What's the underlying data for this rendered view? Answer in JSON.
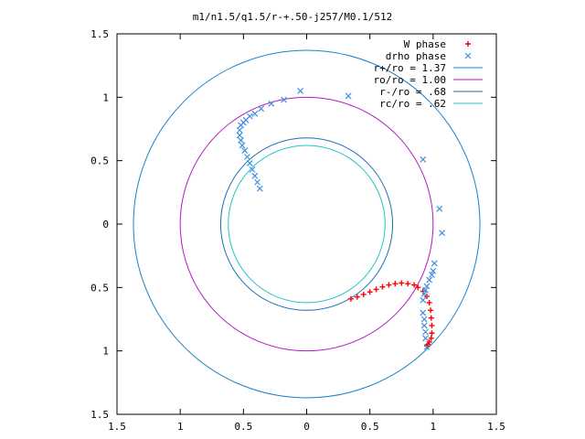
{
  "chart_data": {
    "type": "scatter",
    "title": "m1/n1.5/q1.5/r-+.50-j257/M0.1/512",
    "xlim": [
      -1.5,
      1.5
    ],
    "ylim": [
      -1.5,
      1.5
    ],
    "x_ticks": [
      -1.5,
      -1,
      -0.5,
      0,
      0.5,
      1,
      1.5
    ],
    "y_ticks": [
      1.5,
      1,
      0.5,
      0,
      -0.5,
      -1,
      -1.5
    ],
    "x_tick_labels": [
      "1.5",
      "1",
      "0.5",
      "0",
      "0.5",
      "1",
      "1.5"
    ],
    "y_tick_labels": [
      "1.5",
      "1",
      "0.5",
      "0",
      "0.5",
      "1",
      "1.5"
    ],
    "grid": false,
    "legend_position": "top-right",
    "series": [
      {
        "name": "W phase",
        "kind": "points",
        "marker": "+",
        "color": "#ff0000",
        "x": [
          0.35,
          0.4,
          0.45,
          0.5,
          0.55,
          0.6,
          0.65,
          0.7,
          0.75,
          0.8,
          0.85,
          0.88,
          0.92,
          0.95,
          0.97,
          0.98,
          0.985,
          0.99,
          0.99,
          0.985,
          0.97,
          0.96,
          0.95
        ],
        "y": [
          -0.59,
          -0.575,
          -0.555,
          -0.535,
          -0.515,
          -0.495,
          -0.48,
          -0.47,
          -0.465,
          -0.47,
          -0.48,
          -0.5,
          -0.53,
          -0.57,
          -0.62,
          -0.68,
          -0.74,
          -0.8,
          -0.86,
          -0.9,
          -0.93,
          -0.95,
          -0.96
        ]
      },
      {
        "name": "drho phase",
        "kind": "points",
        "marker": "x",
        "color": "#3f8fdf",
        "x": [
          -0.37,
          -0.39,
          -0.41,
          -0.43,
          -0.45,
          -0.47,
          -0.49,
          -0.51,
          -0.52,
          -0.53,
          -0.53,
          -0.52,
          -0.5,
          -0.48,
          -0.45,
          -0.41,
          -0.36,
          -0.28,
          -0.18,
          -0.05,
          0.33,
          0.92,
          1.05,
          1.07,
          1.01,
          1.0,
          0.99,
          0.97,
          0.95,
          0.94,
          0.93,
          0.92,
          0.92,
          0.93,
          0.93,
          0.94,
          0.94,
          0.95
        ],
        "y": [
          0.28,
          0.33,
          0.38,
          0.43,
          0.48,
          0.53,
          0.58,
          0.62,
          0.66,
          0.7,
          0.74,
          0.78,
          0.8,
          0.82,
          0.85,
          0.87,
          0.91,
          0.95,
          0.98,
          1.05,
          1.01,
          0.51,
          0.12,
          -0.07,
          -0.31,
          -0.37,
          -0.4,
          -0.44,
          -0.49,
          -0.52,
          -0.55,
          -0.6,
          -0.7,
          -0.75,
          -0.8,
          -0.85,
          -0.9,
          -0.97
        ]
      },
      {
        "name": "r+/ro = 1.37",
        "kind": "circle",
        "radius": 1.37,
        "color": "#1a82c8"
      },
      {
        "name": "ro/ro = 1.00",
        "kind": "circle",
        "radius": 1.0,
        "color": "#b21cc0"
      },
      {
        "name": "r-/ro = .68",
        "kind": "circle",
        "radius": 0.68,
        "color": "#1f6cb3"
      },
      {
        "name": "rc/ro = .62",
        "kind": "circle",
        "radius": 0.62,
        "color": "#21c2c8"
      }
    ]
  }
}
